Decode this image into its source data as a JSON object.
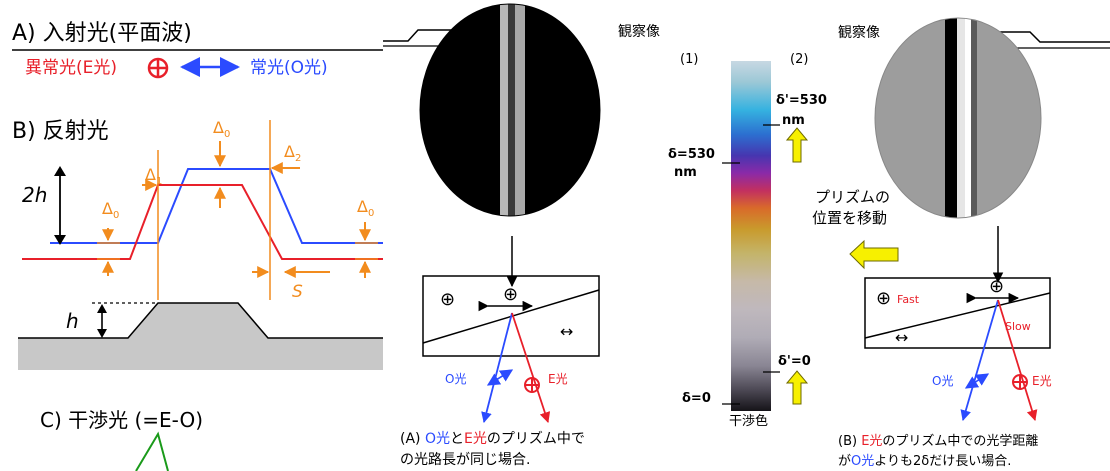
{
  "section_a": {
    "title": "A) 入射光(平面波)",
    "e_light": "異常光(E光)",
    "o_light": "常光(O光)",
    "e_symbol": "⊕"
  },
  "section_b": {
    "title": "B) 反射光",
    "label_2h": "2h",
    "label_h": "h",
    "label_s": "S",
    "delta0": "Δ",
    "sub0": "0",
    "sub1": "1",
    "sub2": "2"
  },
  "section_c": {
    "title": "C) 干渉光 (=E-O)"
  },
  "panel_a": {
    "observed_label": "観察像",
    "cross": "⊕",
    "double_arrow": "↔",
    "o_ray": "O光",
    "e_ray": "E光",
    "caption_prefix": "(A) ",
    "caption_o": "O光",
    "caption_mid": "と",
    "caption_e": "E光",
    "caption_rest": "のプリズム中で",
    "caption_line2": "の光路長が同じ場合."
  },
  "color_bar": {
    "label_1": "(1)",
    "label_2": "(2)",
    "delta_530": "δ=530",
    "nm_1": "nm",
    "delta_prime_530": "δ'=530",
    "nm_2": "nm",
    "delta_prime_0": "δ'=0",
    "delta_0": "δ=0",
    "caption": "干渉色"
  },
  "move_note": {
    "line1": "プリズムの",
    "line2": "位置を移動"
  },
  "panel_b": {
    "observed_label": "観察像",
    "cross": "⊕",
    "fast": "Fast",
    "slow": "Slow",
    "double_arrow": "↔",
    "o_ray": "O光",
    "e_ray": "E光",
    "caption_prefix": "(B) ",
    "caption_e": "E光",
    "caption_rest": "のプリズム中での光学距離",
    "caption_l2_prefix": "が",
    "caption_o": "O光",
    "caption_l2_rest": "よりも2δだけ長い場合."
  },
  "colors": {
    "red": "#e8202a",
    "blue": "#2b4bff",
    "orange": "#f28c1e",
    "green": "#1a9a1a",
    "gray_fill": "#c8c8c8",
    "yellow": "#f7f000"
  }
}
